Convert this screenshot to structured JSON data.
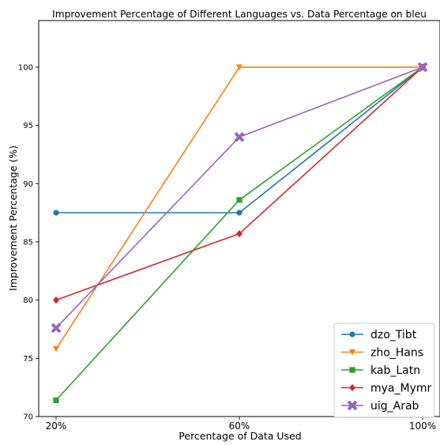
{
  "chart_data": {
    "type": "line",
    "title": "Improvement Percentage of Different Languages vs. Data Percentage on bleu",
    "xlabel": "Percentage of Data Used",
    "ylabel": "Improvement Percentage (%)",
    "categories": [
      "20%",
      "60%",
      "100%"
    ],
    "ylim": [
      70,
      104
    ],
    "yticks": [
      70,
      75,
      80,
      85,
      90,
      95,
      100
    ],
    "grid": false,
    "legend_position": "bottom-right",
    "series": [
      {
        "name": "dzo_Tibt",
        "values": [
          87.5,
          87.5,
          100
        ],
        "color": "#1f77b4",
        "marker": "circle"
      },
      {
        "name": "zho_Hans",
        "values": [
          75.8,
          100,
          100
        ],
        "color": "#ff7f0e",
        "marker": "triangle-down"
      },
      {
        "name": "kab_Latn",
        "values": [
          71.4,
          88.6,
          100
        ],
        "color": "#2ca02c",
        "marker": "square"
      },
      {
        "name": "mya_Mymr",
        "values": [
          80.0,
          85.7,
          100
        ],
        "color": "#d62728",
        "marker": "diamond"
      },
      {
        "name": "uig_Arab",
        "values": [
          77.6,
          94.0,
          100
        ],
        "color": "#9467bd",
        "marker": "x"
      }
    ]
  }
}
